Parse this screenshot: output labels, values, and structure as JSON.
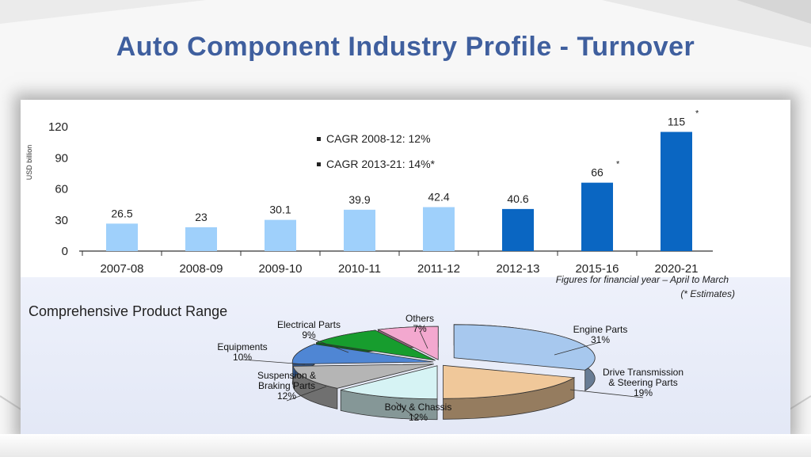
{
  "slide": {
    "title": "Auto Component Industry Profile - Turnover"
  },
  "colors": {
    "title": "#3f5f9e",
    "bar_actual": "#9fd0fb",
    "bar_recent": "#0a66c2"
  },
  "chart_data": [
    {
      "type": "bar",
      "ylabel": "USD billion",
      "ylim": [
        0,
        120
      ],
      "yticks": [
        0,
        30,
        60,
        90,
        120
      ],
      "categories": [
        "2007-08",
        "2008-09",
        "2009-10",
        "2010-11",
        "2011-12",
        "2012-13",
        "2015-16",
        "2020-21"
      ],
      "values": [
        26.5,
        23,
        30.1,
        39.9,
        42.4,
        40.6,
        66,
        115
      ],
      "value_labels": [
        "26.5",
        "23",
        "30.1",
        "39.9",
        "42.4",
        "40.6",
        "66",
        "115"
      ],
      "estimate_marker": "*",
      "estimate_flags": [
        false,
        false,
        false,
        false,
        false,
        false,
        true,
        true
      ],
      "bar_color_group": [
        "light",
        "light",
        "light",
        "light",
        "light",
        "dark",
        "dark",
        "dark"
      ],
      "annotations": [
        "CAGR 2008-12: 12%",
        "CAGR 2013-21: 14%*"
      ],
      "footnotes": [
        "Figures for financial year – April to March",
        "(* Estimates)"
      ],
      "grid": false
    },
    {
      "type": "pie",
      "title": "Comprehensive Product Range",
      "slices": [
        {
          "label": "Engine Parts",
          "value": 31,
          "value_label": "31%",
          "color": "#a7c8ee"
        },
        {
          "label": "Drive Transmission & Steering Parts",
          "value": 19,
          "value_label": "19%",
          "color": "#f0c89a"
        },
        {
          "label": "Body & Chassis",
          "value": 12,
          "value_label": "12%",
          "color": "#d6f3f4"
        },
        {
          "label": "Suspension & Braking Parts",
          "value": 12,
          "value_label": "12%",
          "color": "#b5b5b5"
        },
        {
          "label": "Equipments",
          "value": 10,
          "value_label": "10%",
          "color": "#4f86d4"
        },
        {
          "label": "Electrical Parts",
          "value": 9,
          "value_label": "9%",
          "color": "#179d2e"
        },
        {
          "label": "Others",
          "value": 7,
          "value_label": "7%",
          "color": "#f3a8cf"
        }
      ],
      "slice_label_lines": [
        [
          "Engine Parts",
          "31%"
        ],
        [
          "Drive Transmission",
          "& Steering Parts",
          "19%"
        ],
        [
          "Body & Chassis",
          "12%"
        ],
        [
          "Suspension &",
          "Braking Parts",
          "12%"
        ],
        [
          "Equipments",
          "10%"
        ],
        [
          "Electrical Parts",
          "9%"
        ],
        [
          "Others",
          "7%"
        ]
      ],
      "style": "3d-exploded"
    }
  ]
}
